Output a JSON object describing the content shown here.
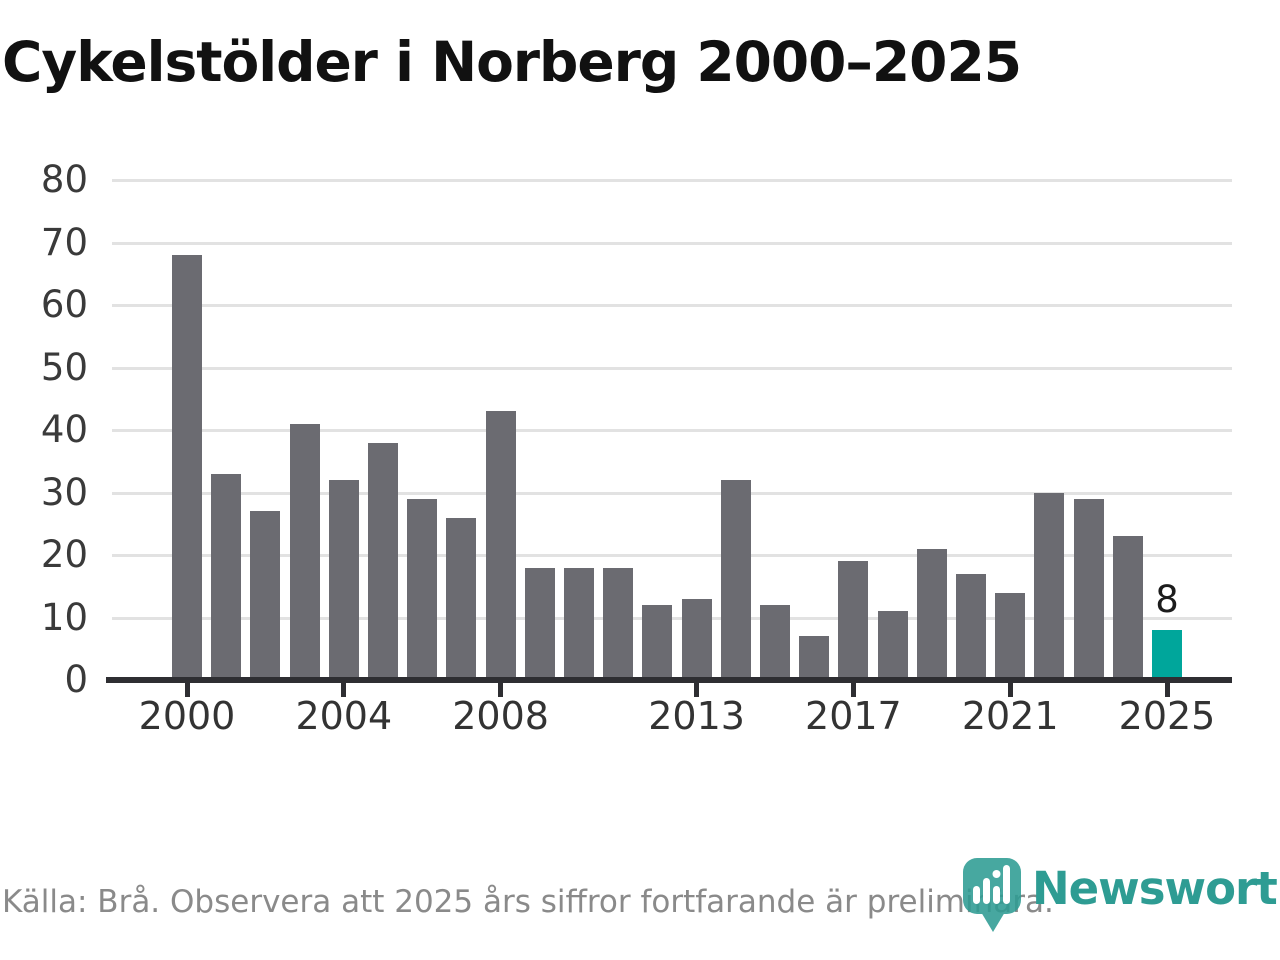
{
  "title": "Cykelstölder i Norberg 2000–2025",
  "source_note": "Källa: Brå. Observera att 2025 års siffror fortfarande är preliminära.",
  "logo": {
    "name": "Newsworthy",
    "icon": "newsworthy-pin-barchart-icon"
  },
  "annotation": {
    "year": 2025,
    "label": "8"
  },
  "colors": {
    "bar": "#6b6b71",
    "highlight_bar": "#00a69b",
    "gridline": "#e2e2e2",
    "axis": "#2e2e32",
    "tick_label": "#3a3a3a",
    "title": "#111111",
    "source_text": "#8a8a8a",
    "logo_teal": "#2e9c93"
  },
  "chart_data": {
    "type": "bar",
    "x": [
      2000,
      2001,
      2002,
      2003,
      2004,
      2005,
      2006,
      2007,
      2008,
      2009,
      2010,
      2011,
      2012,
      2013,
      2014,
      2015,
      2016,
      2017,
      2018,
      2019,
      2020,
      2021,
      2022,
      2023,
      2024,
      2025
    ],
    "values": [
      68,
      33,
      27,
      41,
      32,
      38,
      29,
      26,
      43,
      18,
      18,
      18,
      12,
      13,
      32,
      12,
      7,
      19,
      11,
      21,
      17,
      14,
      30,
      29,
      23,
      8
    ],
    "highlight_year": 2025,
    "title": "Cykelstölder i Norberg 2000–2025",
    "xlabel": "",
    "ylabel": "",
    "ylim": [
      0,
      80
    ],
    "yticks": [
      0,
      10,
      20,
      30,
      40,
      50,
      60,
      70,
      80
    ],
    "xticks": [
      2000,
      2004,
      2008,
      2013,
      2017,
      2021,
      2025
    ],
    "grid": "horizontal",
    "legend": "none",
    "data_label": {
      "year": 2025,
      "text": "8"
    }
  }
}
